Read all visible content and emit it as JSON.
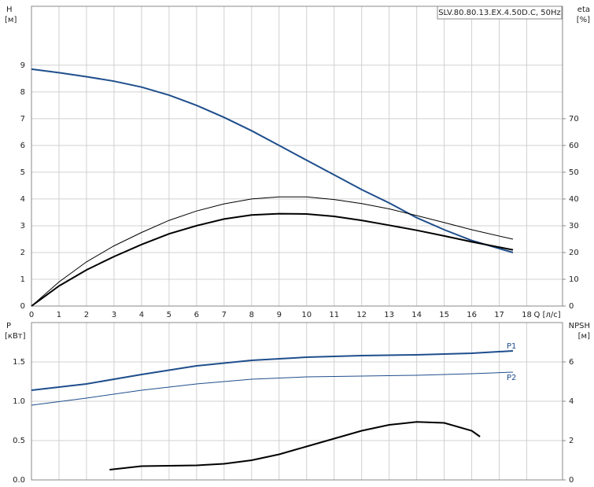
{
  "chart_data": [
    {
      "type": "line",
      "title": "SLV.80.80.13.EX.4.50D.C, 50Hz",
      "ylabel": "H",
      "yunit": "[м]",
      "y2label": "eta",
      "y2unit": "[%]",
      "xlabel": "Q [л/с]",
      "xlim": [
        0,
        19.3
      ],
      "xticks": [
        0,
        1,
        2,
        3,
        4,
        5,
        6,
        7,
        8,
        9,
        10,
        11,
        12,
        13,
        14,
        15,
        16,
        17,
        18
      ],
      "ylim": [
        0,
        11.2
      ],
      "yticks": [
        0,
        1,
        2,
        3,
        4,
        5,
        6,
        7,
        8,
        9
      ],
      "y2lim": [
        0,
        112
      ],
      "y2ticks": [
        0,
        10,
        20,
        30,
        40,
        50,
        60,
        70
      ],
      "grid": true,
      "series": [
        {
          "color": "#1f4e8c",
          "width": 2,
          "x": [
            0,
            1,
            2,
            3,
            4,
            5,
            6,
            7,
            8,
            9,
            10,
            11,
            12,
            13,
            14,
            15,
            16,
            17.5
          ],
          "values": [
            8.85,
            8.72,
            8.57,
            8.4,
            8.18,
            7.88,
            7.5,
            7.05,
            6.55,
            6.0,
            5.45,
            4.9,
            4.35,
            3.85,
            3.3,
            2.85,
            2.45,
            2.0
          ]
        },
        {
          "color": "#000000",
          "width": 2,
          "axis": "y2",
          "x": [
            0,
            1,
            2,
            3,
            4,
            5,
            6,
            7,
            8,
            9,
            10,
            11,
            12,
            13,
            14,
            15,
            16,
            17.5
          ],
          "values": [
            0,
            7.5,
            13.5,
            18.5,
            23,
            27,
            30,
            32.5,
            34,
            34.5,
            34.4,
            33.5,
            32,
            30.2,
            28.3,
            26.2,
            24,
            21
          ]
        },
        {
          "color": "#000000",
          "width": 1,
          "axis": "y2",
          "x": [
            0,
            1,
            2,
            3,
            4,
            5,
            6,
            7,
            8,
            9,
            10,
            11,
            12,
            13,
            14,
            15,
            16,
            17.5
          ],
          "values": [
            0,
            9,
            16.5,
            22.5,
            27.5,
            32,
            35.5,
            38.2,
            40,
            40.8,
            40.8,
            39.8,
            38.3,
            36.3,
            33.8,
            31.2,
            28.5,
            25
          ]
        }
      ]
    },
    {
      "type": "line",
      "ylabel": "P",
      "yunit": "[кВт]",
      "y2label": "NPSH",
      "y2unit": "[м]",
      "xlim": [
        0,
        19.3
      ],
      "xticks": [
        0,
        1,
        2,
        3,
        4,
        5,
        6,
        7,
        8,
        9,
        10,
        11,
        12,
        13,
        14,
        15,
        16,
        17,
        18
      ],
      "ylim": [
        0,
        2.0
      ],
      "yticks": [
        {
          "value": 0,
          "label": "0.0"
        },
        {
          "value": 0.5,
          "label": "0.5"
        },
        {
          "value": 1,
          "label": "1.0"
        },
        {
          "value": 1.5,
          "label": "1.5"
        }
      ],
      "y2lim": [
        0,
        8
      ],
      "y2ticks": [
        0,
        2,
        4,
        6
      ],
      "grid": true,
      "series": [
        {
          "name": "P1",
          "color": "#1f4e8c",
          "width": 2,
          "x": [
            0,
            2,
            4,
            6,
            8,
            10,
            12,
            14,
            16,
            17.5
          ],
          "values": [
            1.14,
            1.22,
            1.34,
            1.45,
            1.52,
            1.56,
            1.58,
            1.59,
            1.61,
            1.64
          ]
        },
        {
          "name": "P2",
          "color": "#1f4e8c",
          "width": 1,
          "x": [
            0,
            2,
            4,
            6,
            8,
            10,
            12,
            14,
            16,
            17.5
          ],
          "values": [
            0.95,
            1.04,
            1.14,
            1.22,
            1.28,
            1.31,
            1.32,
            1.33,
            1.35,
            1.37
          ]
        },
        {
          "color": "#000000",
          "width": 2,
          "axis": "y2",
          "x": [
            2.84,
            4,
            5,
            6,
            7,
            8,
            9,
            10,
            11,
            12,
            13,
            14,
            15,
            16,
            16.3
          ],
          "values": [
            0.52,
            0.7,
            0.72,
            0.74,
            0.82,
            1.0,
            1.3,
            1.7,
            2.1,
            2.5,
            2.8,
            2.95,
            2.9,
            2.5,
            2.2
          ]
        }
      ]
    }
  ]
}
